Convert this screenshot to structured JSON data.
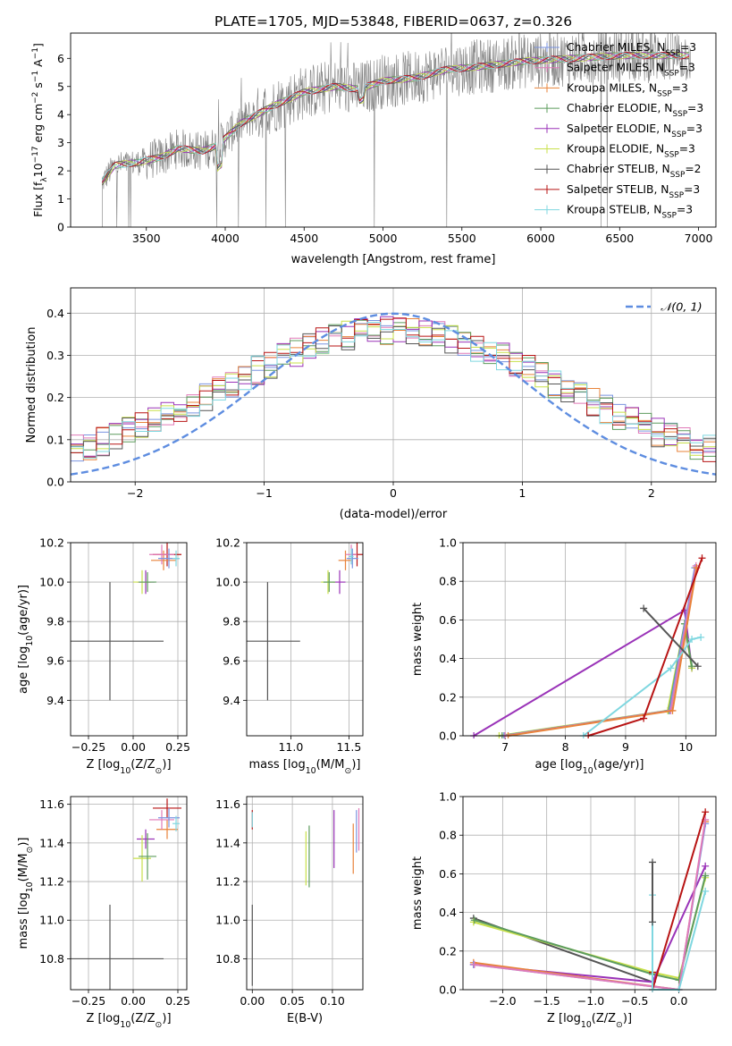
{
  "figure_title": "PLATE=1705, MJD=53848, FIBERID=0637, z=0.326",
  "colors": {
    "Chabrier MILES": "#7a93e0",
    "Salpeter MILES": "#e07ab8",
    "Kroupa MILES": "#e8833a",
    "Chabrier ELODIE": "#5d9c5d",
    "Salpeter ELODIE": "#9a33b8",
    "Kroupa ELODIE": "#c8e04a",
    "Chabrier STELIB": "#555555",
    "Salpeter STELIB": "#b81414",
    "Kroupa STELIB": "#7fd7e0",
    "data": "#808080",
    "normal": "#5e8de0"
  },
  "chart_data": [
    {
      "id": "spectrum",
      "type": "line",
      "xlabel": "wavelength [Angstrom, rest frame]",
      "ylabel": "Flux [f",
      "ylabel_sub": "λ",
      "ylabel_rest": "10",
      "ylabel_exp": "−17",
      "ylabel_tail": " erg cm",
      "ylabel_exp2": "−2",
      "ylabel_tail2": " s",
      "ylabel_exp3": "−1",
      "ylabel_tail3": " A",
      "ylabel_exp4": "−1",
      "ylabel_end": "]",
      "xlim": [
        3020,
        7110
      ],
      "ylim": [
        0,
        6.9
      ],
      "xticks": [
        "3500",
        "4000",
        "4500",
        "5000",
        "5500",
        "6000",
        "6500",
        "7000"
      ],
      "yticks": [
        "0",
        "1",
        "2",
        "3",
        "4",
        "5",
        "6"
      ],
      "continuum_anchors": [
        [
          3220,
          1.6
        ],
        [
          3300,
          2.2
        ],
        [
          3450,
          2.3
        ],
        [
          3600,
          2.5
        ],
        [
          3700,
          2.8
        ],
        [
          3850,
          2.7
        ],
        [
          3950,
          2.9
        ],
        [
          4100,
          3.7
        ],
        [
          4300,
          4.3
        ],
        [
          4500,
          4.8
        ],
        [
          4700,
          5.0
        ],
        [
          4850,
          4.9
        ],
        [
          5000,
          5.2
        ],
        [
          5200,
          5.3
        ],
        [
          5400,
          5.6
        ],
        [
          5600,
          5.7
        ],
        [
          5900,
          5.9
        ],
        [
          6200,
          6.0
        ],
        [
          6500,
          6.1
        ],
        [
          6900,
          6.1
        ]
      ],
      "legend": [
        {
          "label": "Chabrier MILES, N",
          "sub": "SSP",
          "tail": "=3",
          "key": "Chabrier MILES"
        },
        {
          "label": "Salpeter MILES, N",
          "sub": "SSP",
          "tail": "=3",
          "key": "Salpeter MILES"
        },
        {
          "label": "Kroupa MILES, N",
          "sub": "SSP",
          "tail": "=3",
          "key": "Kroupa MILES"
        },
        {
          "label": "Chabrier ELODIE, N",
          "sub": "SSP",
          "tail": "=3",
          "key": "Chabrier ELODIE"
        },
        {
          "label": "Salpeter ELODIE, N",
          "sub": "SSP",
          "tail": "=3",
          "key": "Salpeter ELODIE"
        },
        {
          "label": "Kroupa ELODIE, N",
          "sub": "SSP",
          "tail": "=3",
          "key": "Kroupa ELODIE"
        },
        {
          "label": "Chabrier STELIB, N",
          "sub": "SSP",
          "tail": "=2",
          "key": "Chabrier STELIB"
        },
        {
          "label": "Salpeter STELIB, N",
          "sub": "SSP",
          "tail": "=3",
          "key": "Salpeter STELIB"
        },
        {
          "label": "Kroupa STELIB, N",
          "sub": "SSP",
          "tail": "=3",
          "key": "Kroupa STELIB"
        }
      ]
    },
    {
      "id": "residuals",
      "type": "line",
      "xlabel": "(data-model)/error",
      "ylabel": "Normed distribution",
      "xlim": [
        -2.5,
        2.5
      ],
      "ylim": [
        0,
        0.46
      ],
      "xticks": [
        "−2",
        "−1",
        "0",
        "1",
        "2"
      ],
      "yticks": [
        "0.0",
        "0.1",
        "0.2",
        "0.3",
        "0.4"
      ],
      "legend_label": "𝒩(0, 1)",
      "normal": {
        "mean": 0,
        "sigma": 1
      }
    },
    {
      "id": "age_vs_Z",
      "type": "scatter",
      "xlabel": "Z [log",
      "xlabel_sub": "10",
      "xlabel_tail": "(Z/Z",
      "xlabel_sun": "⊙",
      "xlabel_end": ")]",
      "ylabel": "age  [log",
      "ylabel_sub": "10",
      "ylabel_tail": "(age/yr)]",
      "xlim": [
        -0.35,
        0.3
      ],
      "ylim": [
        9.22,
        10.2
      ],
      "xticks": [
        -0.25,
        0,
        0.25
      ],
      "xtick_labels": [
        "−0.25",
        "0.00",
        "0.25"
      ],
      "yticks": [
        9.4,
        9.6,
        9.8,
        10.0,
        10.2
      ],
      "ytick_labels": [
        "9.4",
        "9.6",
        "9.8",
        "10.0",
        "10.2"
      ],
      "points": [
        {
          "key": "Chabrier STELIB",
          "x": -0.13,
          "xerr": 0.3,
          "y": 9.7,
          "yerr": 0.3
        },
        {
          "key": "Salpeter STELIB",
          "x": 0.19,
          "xerr": 0.08,
          "y": 10.14,
          "yerr": 0.06
        },
        {
          "key": "Kroupa MILES",
          "x": 0.17,
          "xerr": 0.07,
          "y": 10.11,
          "yerr": 0.05
        },
        {
          "key": "Salpeter MILES",
          "x": 0.16,
          "xerr": 0.07,
          "y": 10.14,
          "yerr": 0.05
        },
        {
          "key": "Chabrier MILES",
          "x": 0.2,
          "xerr": 0.06,
          "y": 10.12,
          "yerr": 0.05
        },
        {
          "key": "Salpeter ELODIE",
          "x": 0.07,
          "xerr": 0.05,
          "y": 10.0,
          "yerr": 0.06
        },
        {
          "key": "Kroupa ELODIE",
          "x": 0.05,
          "xerr": 0.05,
          "y": 10.0,
          "yerr": 0.06
        },
        {
          "key": "Chabrier ELODIE",
          "x": 0.08,
          "xerr": 0.05,
          "y": 10.0,
          "yerr": 0.05
        },
        {
          "key": "Kroupa STELIB",
          "x": 0.24,
          "xerr": 0.02,
          "y": 10.12,
          "yerr": 0.04
        }
      ]
    },
    {
      "id": "age_vs_mass",
      "type": "scatter",
      "xlabel": "mass [log",
      "xlabel_sub": "10",
      "xlabel_tail": "(M/M",
      "xlabel_sun": "⊙",
      "xlabel_end": ")]",
      "xlim": [
        10.62,
        11.62
      ],
      "ylim": [
        9.22,
        10.2
      ],
      "xticks": [
        11.0,
        11.5
      ],
      "xtick_labels": [
        "11.0",
        "11.5"
      ],
      "yticks": [
        9.4,
        9.6,
        9.8,
        10.0,
        10.2
      ],
      "ytick_labels": [
        "9.4",
        "9.6",
        "9.8",
        "10.0",
        "10.2"
      ],
      "points": [
        {
          "key": "Chabrier STELIB",
          "x": 10.8,
          "xerr": 0.28,
          "y": 9.7,
          "yerr": 0.3
        },
        {
          "key": "Salpeter STELIB",
          "x": 11.57,
          "xerr": 0.05,
          "y": 10.14,
          "yerr": 0.06
        },
        {
          "key": "Kroupa MILES",
          "x": 11.47,
          "xerr": 0.06,
          "y": 10.11,
          "yerr": 0.05
        },
        {
          "key": "Salpeter MILES",
          "x": 11.52,
          "xerr": 0.05,
          "y": 10.14,
          "yerr": 0.05
        },
        {
          "key": "Chabrier MILES",
          "x": 11.53,
          "xerr": 0.05,
          "y": 10.12,
          "yerr": 0.05
        },
        {
          "key": "Salpeter ELODIE",
          "x": 11.42,
          "xerr": 0.05,
          "y": 10.0,
          "yerr": 0.06
        },
        {
          "key": "Kroupa ELODIE",
          "x": 11.32,
          "xerr": 0.06,
          "y": 10.0,
          "yerr": 0.06
        },
        {
          "key": "Chabrier ELODIE",
          "x": 11.33,
          "xerr": 0.05,
          "y": 10.0,
          "yerr": 0.05
        },
        {
          "key": "Kroupa STELIB",
          "x": 11.52,
          "xerr": 0.02,
          "y": 10.13,
          "yerr": 0.04
        }
      ]
    },
    {
      "id": "weight_vs_age",
      "type": "line",
      "xlabel": "age  [log",
      "xlabel_sub": "10",
      "xlabel_tail": "(age/yr)]",
      "ylabel": "mass weight",
      "xlim": [
        6.3,
        10.5
      ],
      "ylim": [
        0,
        1
      ],
      "xticks": [
        7,
        8,
        9,
        10
      ],
      "xtick_labels": [
        "7",
        "8",
        "9",
        "10"
      ],
      "yticks": [
        0,
        0.2,
        0.4,
        0.6,
        0.8,
        1.0
      ],
      "ytick_labels": [
        "0.0",
        "0.2",
        "0.4",
        "0.6",
        "0.8",
        "1.0"
      ],
      "series": [
        {
          "key": "Salpeter ELODIE",
          "points": [
            [
              6.48,
              0.0
            ],
            [
              9.98,
              0.65
            ],
            [
              10.1,
              0.35
            ]
          ]
        },
        {
          "key": "Kroupa ELODIE",
          "points": [
            [
              6.9,
              0.0
            ],
            [
              9.7,
              0.13
            ],
            [
              9.98,
              0.58
            ],
            [
              10.1,
              0.35
            ]
          ]
        },
        {
          "key": "Chabrier ELODIE",
          "points": [
            [
              6.95,
              0.0
            ],
            [
              9.72,
              0.13
            ],
            [
              9.98,
              0.58
            ],
            [
              10.1,
              0.36
            ]
          ]
        },
        {
          "key": "Chabrier MILES",
          "points": [
            [
              6.98,
              0.0
            ],
            [
              9.73,
              0.13
            ],
            [
              10.15,
              0.87
            ]
          ]
        },
        {
          "key": "Salpeter MILES",
          "points": [
            [
              7.0,
              0.0
            ],
            [
              9.75,
              0.13
            ],
            [
              10.17,
              0.88
            ]
          ]
        },
        {
          "key": "Kroupa MILES",
          "points": [
            [
              7.05,
              0.0
            ],
            [
              9.78,
              0.13
            ],
            [
              10.18,
              0.87
            ]
          ]
        },
        {
          "key": "Kroupa STELIB",
          "points": [
            [
              8.3,
              0.0
            ],
            [
              9.75,
              0.35
            ],
            [
              10.1,
              0.5
            ],
            [
              10.25,
              0.51
            ]
          ]
        },
        {
          "key": "Salpeter STELIB",
          "points": [
            [
              8.38,
              0.0
            ],
            [
              9.3,
              0.09
            ],
            [
              10.27,
              0.92
            ]
          ]
        },
        {
          "key": "Chabrier STELIB",
          "points": [
            [
              9.3,
              0.66
            ],
            [
              10.2,
              0.36
            ]
          ]
        }
      ]
    },
    {
      "id": "mass_vs_Z",
      "type": "scatter",
      "xlabel": "Z [log",
      "xlabel_sub": "10",
      "xlabel_tail": "(Z/Z",
      "xlabel_sun": "⊙",
      "xlabel_end": ")]",
      "ylabel": "mass [log",
      "ylabel_sub": "10",
      "ylabel_tail": "(M/M",
      "ylabel_sun": "⊙",
      "ylabel_end": ")]",
      "xlim": [
        -0.35,
        0.3
      ],
      "ylim": [
        10.64,
        11.64
      ],
      "xticks": [
        -0.25,
        0,
        0.25
      ],
      "xtick_labels": [
        "−0.25",
        "0.00",
        "0.25"
      ],
      "yticks": [
        10.8,
        11.0,
        11.2,
        11.4,
        11.6
      ],
      "ytick_labels": [
        "10.8",
        "11.0",
        "11.2",
        "11.4",
        "11.6"
      ],
      "points": [
        {
          "key": "Chabrier STELIB",
          "x": -0.13,
          "xerr": 0.3,
          "y": 10.8,
          "yerr": 0.28
        },
        {
          "key": "Salpeter STELIB",
          "x": 0.19,
          "xerr": 0.08,
          "y": 11.58,
          "yerr": 0.05
        },
        {
          "key": "Kroupa MILES",
          "x": 0.19,
          "xerr": 0.06,
          "y": 11.47,
          "yerr": 0.05
        },
        {
          "key": "Salpeter MILES",
          "x": 0.16,
          "xerr": 0.07,
          "y": 11.52,
          "yerr": 0.05
        },
        {
          "key": "Chabrier MILES",
          "x": 0.2,
          "xerr": 0.06,
          "y": 11.53,
          "yerr": 0.05
        },
        {
          "key": "Salpeter ELODIE",
          "x": 0.07,
          "xerr": 0.05,
          "y": 11.42,
          "yerr": 0.05
        },
        {
          "key": "Kroupa ELODIE",
          "x": 0.05,
          "xerr": 0.05,
          "y": 11.32,
          "yerr": 0.12
        },
        {
          "key": "Chabrier ELODIE",
          "x": 0.08,
          "xerr": 0.05,
          "y": 11.33,
          "yerr": 0.12
        },
        {
          "key": "Kroupa STELIB",
          "x": 0.24,
          "xerr": 0.02,
          "y": 11.5,
          "yerr": 0.04
        }
      ]
    },
    {
      "id": "mass_vs_ebv",
      "type": "scatter",
      "xlabel": "E(B-V)",
      "xlim": [
        -0.007,
        0.138
      ],
      "ylim": [
        10.64,
        11.64
      ],
      "xticks": [
        0,
        0.05,
        0.1
      ],
      "xtick_labels": [
        "0.00",
        "0.05",
        "0.10"
      ],
      "yticks": [
        10.8,
        11.0,
        11.2,
        11.4,
        11.6
      ],
      "ytick_labels": [
        "10.8",
        "11.0",
        "11.2",
        "11.4",
        "11.6"
      ],
      "points": [
        {
          "key": "Chabrier STELIB",
          "x": 0.0,
          "y": 10.87,
          "yerr": 0.21
        },
        {
          "key": "Salpeter STELIB",
          "x": 0.0,
          "y": 11.52,
          "yerr": 0.05
        },
        {
          "key": "Kroupa STELIB",
          "x": 0.0,
          "y": 11.52,
          "yerr": 0.04
        },
        {
          "key": "Kroupa ELODIE",
          "x": 0.067,
          "y": 11.32,
          "yerr": 0.14
        },
        {
          "key": "Chabrier ELODIE",
          "x": 0.071,
          "y": 11.33,
          "yerr": 0.16
        },
        {
          "key": "Salpeter ELODIE",
          "x": 0.102,
          "y": 11.42,
          "yerr": 0.15
        },
        {
          "key": "Kroupa MILES",
          "x": 0.126,
          "y": 11.37,
          "yerr": 0.13
        },
        {
          "key": "Chabrier MILES",
          "x": 0.13,
          "y": 11.46,
          "yerr": 0.11
        },
        {
          "key": "Salpeter MILES",
          "x": 0.133,
          "y": 11.47,
          "yerr": 0.11
        }
      ]
    },
    {
      "id": "weight_vs_Z",
      "type": "line",
      "xlabel": "Z [log",
      "xlabel_sub": "10",
      "xlabel_tail": "(Z/Z",
      "xlabel_sun": "⊙",
      "xlabel_end": ")]",
      "ylabel": "mass weight",
      "xlim": [
        -2.45,
        0.42
      ],
      "ylim": [
        0,
        1
      ],
      "xticks": [
        -2.0,
        -1.5,
        -1.0,
        -0.5,
        0.0
      ],
      "xtick_labels": [
        "−2.0",
        "−1.5",
        "−1.0",
        "−0.5",
        "0.0"
      ],
      "yticks": [
        0,
        0.2,
        0.4,
        0.6,
        0.8,
        1.0
      ],
      "ytick_labels": [
        "0.0",
        "0.2",
        "0.4",
        "0.6",
        "0.8",
        "1.0"
      ],
      "series": [
        {
          "key": "Chabrier STELIB",
          "points": [
            [
              -2.33,
              0.37
            ],
            [
              -0.3,
              0.04
            ]
          ]
        },
        {
          "key": "Kroupa ELODIE",
          "points": [
            [
              -2.33,
              0.35
            ],
            [
              -0.3,
              0.09
            ],
            [
              0.0,
              0.06
            ],
            [
              0.3,
              0.58
            ]
          ]
        },
        {
          "key": "Chabrier ELODIE",
          "points": [
            [
              -2.32,
              0.36
            ],
            [
              -0.3,
              0.08
            ],
            [
              0.0,
              0.05
            ],
            [
              0.3,
              0.59
            ]
          ]
        },
        {
          "key": "Salpeter ELODIE",
          "points": [
            [
              -2.33,
              0.13
            ],
            [
              -0.3,
              0.04
            ],
            [
              0.3,
              0.64
            ]
          ]
        },
        {
          "key": "Kroupa MILES",
          "points": [
            [
              -2.33,
              0.14
            ],
            [
              0.0,
              0.0
            ],
            [
              0.3,
              0.87
            ]
          ]
        },
        {
          "key": "Chabrier MILES",
          "points": [
            [
              -2.33,
              0.13
            ],
            [
              0.0,
              0.0
            ],
            [
              0.3,
              0.86
            ]
          ]
        },
        {
          "key": "Salpeter MILES",
          "points": [
            [
              -2.32,
              0.13
            ],
            [
              0.0,
              0.0
            ],
            [
              0.3,
              0.88
            ]
          ]
        },
        {
          "key": "Salpeter STELIB",
          "points": [
            [
              -0.3,
              0.09
            ],
            [
              -0.3,
              0.0
            ],
            [
              0.3,
              0.92
            ]
          ]
        },
        {
          "key": "Kroupa STELIB",
          "points": [
            [
              -0.3,
              0.49
            ],
            [
              -0.3,
              0.0
            ],
            [
              0.0,
              0.0
            ],
            [
              0.3,
              0.51
            ]
          ]
        },
        {
          "key": "Chabrier STELIB",
          "points": [
            [
              -0.3,
              0.66
            ],
            [
              -0.3,
              0.35
            ]
          ]
        }
      ]
    }
  ]
}
